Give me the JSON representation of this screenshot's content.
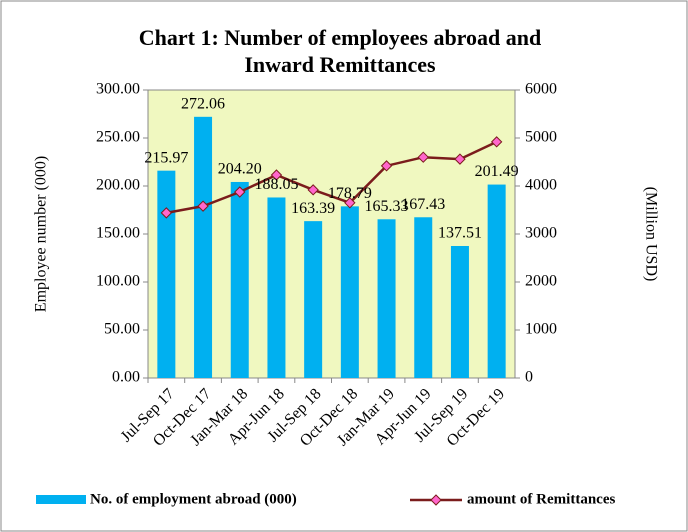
{
  "chart_data": {
    "type": "bar-line",
    "title": [
      "Chart 1: Number of employees abroad and",
      "Inward Remittances"
    ],
    "y_label": "Employee number  (000)",
    "y2_label": "(Million USD)",
    "categories": [
      "Jul-Sep 17",
      "Oct-Dec 17",
      "Jan-Mar 18",
      "Apr-Jun 18",
      "Jul-Sep 18",
      "Oct-Dec 18",
      "Jan-Mar 19",
      "Apr-Jun 19",
      "Jul-Sep 19",
      "Oct-Dec 19"
    ],
    "series": [
      {
        "name": "No. of employment abroad (000)",
        "color": "#00b0f0",
        "type": "bar",
        "values": [
          215.97,
          272.06,
          204.2,
          188.05,
          163.39,
          178.79,
          165.33,
          167.43,
          137.51,
          201.49
        ],
        "value_labels": [
          "215.97",
          "272.06",
          "204.20",
          "188.05",
          "163.39",
          "178.79",
          "165.33",
          "167.43",
          "137.51",
          "201.49"
        ]
      },
      {
        "name": "amount of Remittances",
        "color": "#7b1c1c",
        "marker_color": "#ff66cc",
        "type": "line",
        "axis": "y2",
        "values": [
          3440,
          3580,
          3875,
          4230,
          3920,
          3650,
          4420,
          4600,
          4560,
          4920
        ]
      }
    ],
    "ylim": [
      0,
      300
    ],
    "yticks": [
      {
        "value": 0,
        "label": "0.00"
      },
      {
        "value": 50,
        "label": "50.00"
      },
      {
        "value": 100,
        "label": "100.00"
      },
      {
        "value": 150,
        "label": "150.00"
      },
      {
        "value": 200,
        "label": "200.00"
      },
      {
        "value": 250,
        "label": "250.00"
      },
      {
        "value": 300,
        "label": "300.00"
      }
    ],
    "y2lim": [
      0,
      6000
    ],
    "y2ticks": [
      0,
      1000,
      2000,
      3000,
      4000,
      5000,
      6000
    ],
    "plot_background": "#f0f8c0",
    "legend": "bottom"
  }
}
